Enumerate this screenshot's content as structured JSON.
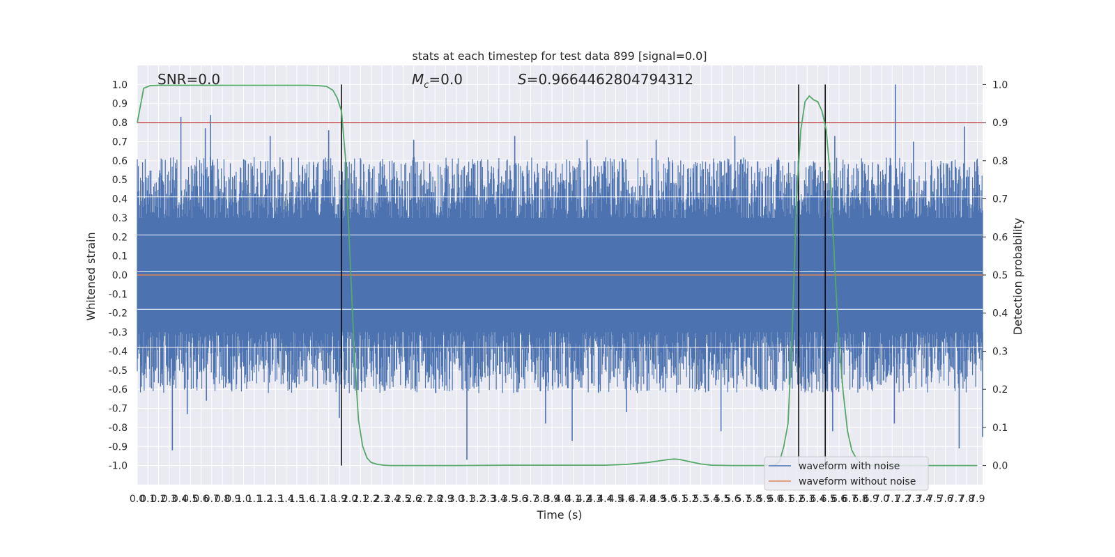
{
  "chart_data": {
    "type": "line",
    "title": "stats at each timestep for test data 899 [signal=0.0]",
    "annotations": {
      "snr": "SNR=0.0",
      "mc_symbol": "M",
      "mc_sub": "c",
      "mc_value": "=0.0",
      "s_symbol": "S",
      "s_value": "=0.9664462804794312"
    },
    "xlabel": "Time (s)",
    "ylabel_left": "Whitened strain",
    "ylabel_right": "Detection probability",
    "xlim": [
      0.0,
      7.95
    ],
    "ylim_left": [
      -1.1,
      1.1
    ],
    "ylim_right": [
      -0.05,
      1.05
    ],
    "x_ticks": [
      0.0,
      0.1,
      0.2,
      0.3,
      0.4,
      0.5,
      0.6,
      0.7,
      0.8,
      0.9,
      1.0,
      1.1,
      1.2,
      1.3,
      1.4,
      1.5,
      1.6,
      1.7,
      1.8,
      1.9,
      2.0,
      2.1,
      2.2,
      2.3,
      2.4,
      2.5,
      2.6,
      2.7,
      2.8,
      2.9,
      3.0,
      3.1,
      3.2,
      3.3,
      3.4,
      3.5,
      3.6,
      3.7,
      3.8,
      3.9,
      4.0,
      4.1,
      4.2,
      4.3,
      4.4,
      4.5,
      4.6,
      4.7,
      4.8,
      4.9,
      5.0,
      5.1,
      5.2,
      5.3,
      5.4,
      5.5,
      5.6,
      5.7,
      5.8,
      5.9,
      6.0,
      6.1,
      6.2,
      6.3,
      6.4,
      6.5,
      6.6,
      6.7,
      6.8,
      6.9,
      7.0,
      7.1,
      7.2,
      7.3,
      7.4,
      7.5,
      7.6,
      7.7,
      7.8,
      7.9
    ],
    "y_ticks_left": [
      -1.0,
      -0.9,
      -0.8,
      -0.7,
      -0.6,
      -0.5,
      -0.4,
      -0.3,
      -0.2,
      -0.1,
      0.0,
      0.1,
      0.2,
      0.3,
      0.4,
      0.5,
      0.6,
      0.7,
      0.8,
      0.9,
      1.0
    ],
    "y_ticks_right": [
      0.0,
      0.1,
      0.2,
      0.3,
      0.4,
      0.5,
      0.6,
      0.7,
      0.8,
      0.9,
      1.0
    ],
    "threshold": 0.9,
    "vlines": [
      1.92,
      6.22,
      6.47
    ],
    "detection_probability": {
      "x": [
        0.0,
        0.06,
        0.12,
        0.2,
        0.4,
        0.6,
        0.8,
        1.0,
        1.2,
        1.4,
        1.6,
        1.7,
        1.78,
        1.84,
        1.88,
        1.92,
        1.96,
        2.0,
        2.04,
        2.08,
        2.12,
        2.16,
        2.2,
        2.26,
        2.32,
        2.38,
        2.46,
        2.6,
        3.0,
        3.5,
        4.0,
        4.4,
        4.6,
        4.8,
        4.9,
        5.0,
        5.05,
        5.1,
        5.2,
        5.3,
        5.4,
        5.6,
        5.8,
        5.9,
        5.96,
        6.0,
        6.04,
        6.08,
        6.12,
        6.16,
        6.2,
        6.24,
        6.28,
        6.32,
        6.36,
        6.4,
        6.44,
        6.48,
        6.52,
        6.56,
        6.6,
        6.64,
        6.68,
        6.72,
        6.76,
        6.8,
        6.84,
        6.88,
        6.94,
        7.0,
        7.1,
        7.3,
        7.5,
        7.7,
        7.9
      ],
      "y": [
        0.9,
        0.99,
        0.997,
        0.998,
        0.998,
        0.998,
        0.998,
        0.998,
        0.998,
        0.998,
        0.998,
        0.997,
        0.995,
        0.985,
        0.965,
        0.93,
        0.8,
        0.55,
        0.3,
        0.12,
        0.05,
        0.02,
        0.008,
        0.003,
        0.001,
        0.0,
        0.0,
        0.0,
        0.0,
        0.001,
        0.001,
        0.001,
        0.003,
        0.008,
        0.012,
        0.016,
        0.017,
        0.016,
        0.01,
        0.004,
        0.001,
        0.0,
        0.0,
        0.0,
        0.001,
        0.002,
        0.01,
        0.05,
        0.11,
        0.35,
        0.7,
        0.88,
        0.955,
        0.97,
        0.96,
        0.955,
        0.93,
        0.88,
        0.75,
        0.52,
        0.32,
        0.19,
        0.09,
        0.04,
        0.02,
        0.008,
        0.003,
        0.001,
        0.0,
        0.0,
        0.0,
        0.0,
        0.0,
        0.0,
        0.0
      ]
    },
    "strain_envelope": {
      "upper_median": 0.42,
      "lower_median": -0.42,
      "peaks": [
        {
          "t": 0.41,
          "v": 0.83
        },
        {
          "t": 0.69,
          "v": 0.84
        },
        {
          "t": 0.64,
          "v": 0.77
        },
        {
          "t": 1.25,
          "v": 0.73
        },
        {
          "t": 1.8,
          "v": 0.76
        },
        {
          "t": 2.6,
          "v": 0.71
        },
        {
          "t": 3.55,
          "v": 0.73
        },
        {
          "t": 4.23,
          "v": 0.71
        },
        {
          "t": 4.88,
          "v": 0.71
        },
        {
          "t": 5.62,
          "v": 0.73
        },
        {
          "t": 6.56,
          "v": 0.73
        },
        {
          "t": 7.13,
          "v": 1.0
        },
        {
          "t": 7.78,
          "v": 0.78
        },
        {
          "t": 7.3,
          "v": 0.7
        }
      ],
      "troughs": [
        {
          "t": 0.33,
          "v": -0.92
        },
        {
          "t": 0.47,
          "v": -0.73
        },
        {
          "t": 0.65,
          "v": -0.66
        },
        {
          "t": 1.9,
          "v": -0.75
        },
        {
          "t": 3.1,
          "v": -0.97
        },
        {
          "t": 3.84,
          "v": -0.78
        },
        {
          "t": 4.09,
          "v": -0.87
        },
        {
          "t": 4.6,
          "v": -0.72
        },
        {
          "t": 5.49,
          "v": -0.82
        },
        {
          "t": 6.54,
          "v": -0.82
        },
        {
          "t": 7.12,
          "v": -0.78
        },
        {
          "t": 7.73,
          "v": -0.91
        },
        {
          "t": 7.95,
          "v": -0.85
        }
      ],
      "white_bands": [
        0.41,
        0.21,
        0.02,
        -0.18,
        -0.38
      ]
    },
    "series": [
      {
        "name": "waveform with noise",
        "color": "#4c72b0"
      },
      {
        "name": "waveform without noise",
        "color": "#dd8452"
      }
    ],
    "probability_color": "#55a868",
    "threshold_color": "#c44e52",
    "vline_color": "#000000",
    "background": "#eaeaf2",
    "grid": true,
    "legend_placement": "lower right"
  }
}
